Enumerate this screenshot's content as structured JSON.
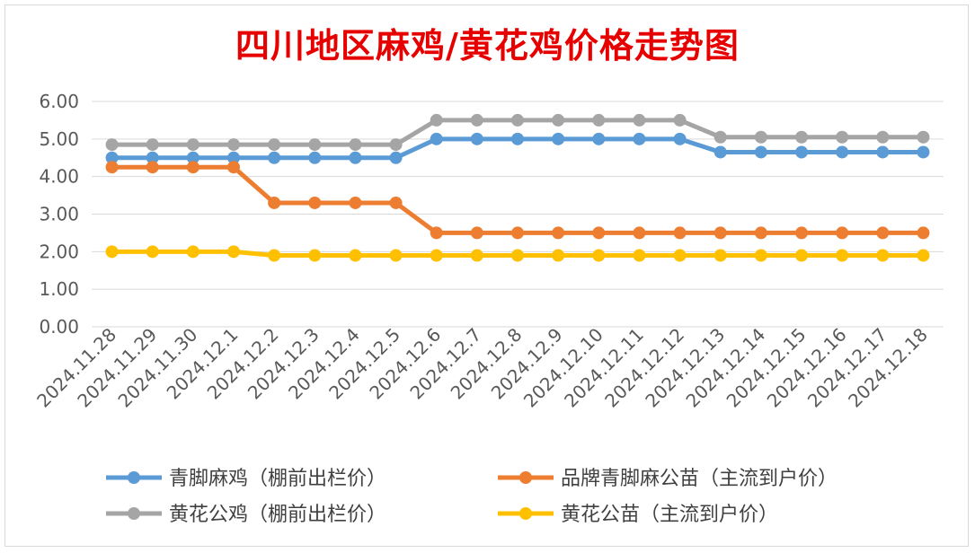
{
  "chart_data": {
    "type": "line",
    "title": "四川地区麻鸡/黄花鸡价格走势图",
    "xlabel": "",
    "ylabel": "",
    "ylim": [
      0,
      6
    ],
    "yticks": [
      "0.00",
      "1.00",
      "2.00",
      "3.00",
      "4.00",
      "5.00",
      "6.00"
    ],
    "grid": true,
    "legend_position": "bottom",
    "categories": [
      "2024.11.28",
      "2024.11.29",
      "2024.11.30",
      "2024.12.1",
      "2024.12.2",
      "2024.12.3",
      "2024.12.4",
      "2024.12.5",
      "2024.12.6",
      "2024.12.7",
      "2024.12.8",
      "2024.12.9",
      "2024.12.10",
      "2024.12.11",
      "2024.12.12",
      "2024.12.13",
      "2024.12.14",
      "2024.12.15",
      "2024.12.16",
      "2024.12.17",
      "2024.12.18"
    ],
    "series": [
      {
        "name": "青脚麻鸡（棚前出栏价）",
        "color": "#5b9bd5",
        "values": [
          4.5,
          4.5,
          4.5,
          4.5,
          4.5,
          4.5,
          4.5,
          4.5,
          5.0,
          5.0,
          5.0,
          5.0,
          5.0,
          5.0,
          5.0,
          4.65,
          4.65,
          4.65,
          4.65,
          4.65,
          4.65
        ]
      },
      {
        "name": "品牌青脚麻公苗（主流到户价）",
        "color": "#ed7d31",
        "values": [
          4.25,
          4.25,
          4.25,
          4.25,
          3.3,
          3.3,
          3.3,
          3.3,
          2.5,
          2.5,
          2.5,
          2.5,
          2.5,
          2.5,
          2.5,
          2.5,
          2.5,
          2.5,
          2.5,
          2.5,
          2.5
        ]
      },
      {
        "name": "黄花公鸡（棚前出栏价）",
        "color": "#a5a5a5",
        "values": [
          4.85,
          4.85,
          4.85,
          4.85,
          4.85,
          4.85,
          4.85,
          4.85,
          5.5,
          5.5,
          5.5,
          5.5,
          5.5,
          5.5,
          5.5,
          5.05,
          5.05,
          5.05,
          5.05,
          5.05,
          5.05
        ]
      },
      {
        "name": "黄花公苗（主流到户价）",
        "color": "#ffc000",
        "values": [
          2.0,
          2.0,
          2.0,
          2.0,
          1.9,
          1.9,
          1.9,
          1.9,
          1.9,
          1.9,
          1.9,
          1.9,
          1.9,
          1.9,
          1.9,
          1.9,
          1.9,
          1.9,
          1.9,
          1.9,
          1.9
        ]
      }
    ]
  }
}
